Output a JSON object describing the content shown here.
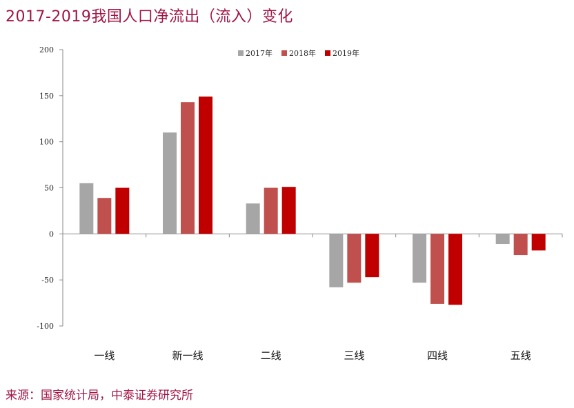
{
  "title": "2017-2019我国人口净流出（流入）变化",
  "source": "来源：国家统计局，中泰证券研究所",
  "colors": {
    "title": "#a01545",
    "series": [
      "#a6a6a6",
      "#c0504d",
      "#c00000"
    ]
  },
  "chart_data": {
    "type": "bar",
    "categories": [
      "一线",
      "新一线",
      "二线",
      "三线",
      "四线",
      "五线"
    ],
    "series": [
      {
        "name": "2017年",
        "values": [
          55,
          110,
          33,
          -58,
          -53,
          -11
        ]
      },
      {
        "name": "2018年",
        "values": [
          39,
          143,
          50,
          -53,
          -76,
          -23
        ]
      },
      {
        "name": "2019年",
        "values": [
          50,
          149,
          51,
          -47,
          -77,
          -18
        ]
      }
    ],
    "ylim": [
      -100,
      200
    ],
    "yticks": [
      200,
      150,
      100,
      50,
      0,
      -50,
      -100
    ],
    "legend_position": "top",
    "grid": false
  }
}
